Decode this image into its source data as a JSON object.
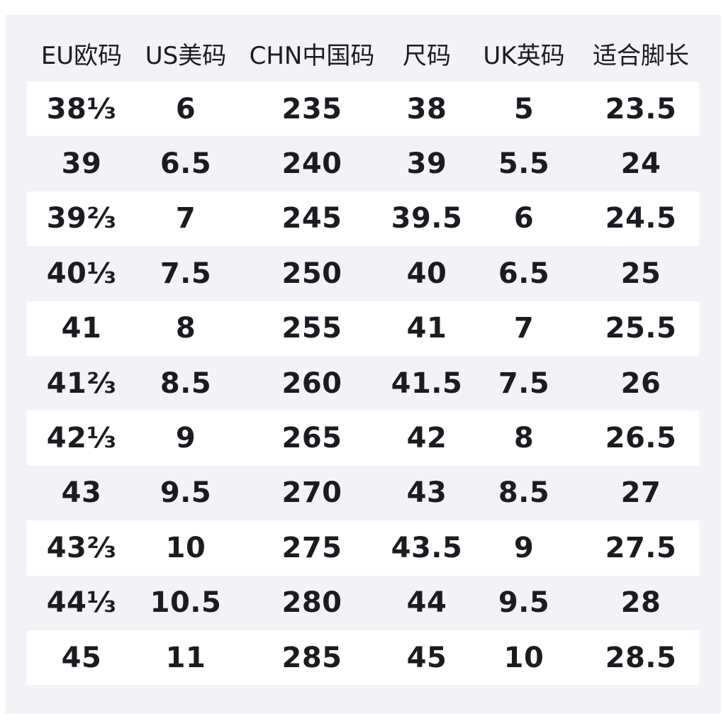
{
  "chart_data": {
    "type": "table",
    "columns": [
      "EU欧码",
      "US美码",
      "CHN中国码",
      "尺码",
      "UK英码",
      "适合脚长"
    ],
    "rows": [
      [
        "38⅓",
        "6",
        "235",
        "38",
        "5",
        "23.5"
      ],
      [
        "39",
        "6.5",
        "240",
        "39",
        "5.5",
        "24"
      ],
      [
        "39⅔",
        "7",
        "245",
        "39.5",
        "6",
        "24.5"
      ],
      [
        "40⅓",
        "7.5",
        "250",
        "40",
        "6.5",
        "25"
      ],
      [
        "41",
        "8",
        "255",
        "41",
        "7",
        "25.5"
      ],
      [
        "41⅔",
        "8.5",
        "260",
        "41.5",
        "7.5",
        "26"
      ],
      [
        "42⅓",
        "9",
        "265",
        "42",
        "8",
        "26.5"
      ],
      [
        "43",
        "9.5",
        "270",
        "43",
        "8.5",
        "27"
      ],
      [
        "43⅔",
        "10",
        "275",
        "43.5",
        "9",
        "27.5"
      ],
      [
        "44⅓",
        "10.5",
        "280",
        "44",
        "9.5",
        "28"
      ],
      [
        "45",
        "11",
        "285",
        "45",
        "10",
        "28.5"
      ]
    ],
    "layout_hints": {
      "striped_rows": "odd data rows (1st, 3rd, ...) have white background bands",
      "header_background": "same as panel background"
    }
  },
  "colors": {
    "page_background": "#ffffff",
    "panel_background": "#f2f2f7",
    "row_band_background": "#ffffff",
    "text": "#1b1b21"
  }
}
